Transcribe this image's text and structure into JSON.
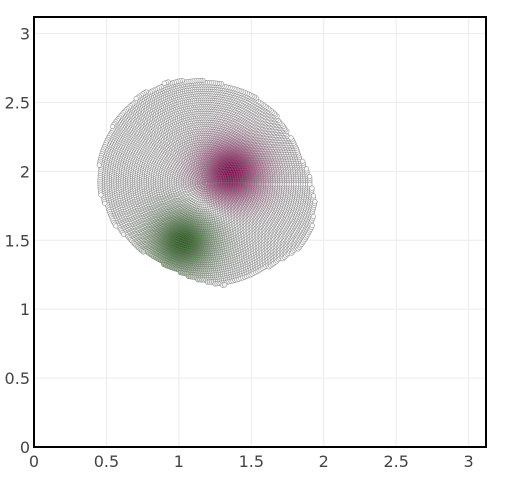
{
  "chart_data": {
    "type": "scatter",
    "title": "",
    "xlabel": "",
    "ylabel": "",
    "xlim": [
      0,
      3.12
    ],
    "ylim": [
      0,
      3.12
    ],
    "grid": true,
    "legend": "none",
    "x_ticks": [
      "0",
      "0.5",
      "1",
      "1.5",
      "2",
      "2.5",
      "3"
    ],
    "y_ticks": [
      "0",
      "0.5",
      "1",
      "1.5",
      "2",
      "2.5",
      "3"
    ],
    "colorscale": [
      "#276419",
      "#f7f7f7",
      "#8e0152"
    ],
    "marker": {
      "style": "open circle",
      "edge_color": "#6e6e6e"
    },
    "region_outline": [
      [
        0.92,
        2.65
      ],
      [
        1.12,
        2.67
      ],
      [
        1.32,
        2.63
      ],
      [
        1.52,
        2.55
      ],
      [
        1.68,
        2.4
      ],
      [
        1.8,
        2.2
      ],
      [
        1.9,
        1.98
      ],
      [
        1.94,
        1.78
      ],
      [
        1.92,
        1.58
      ],
      [
        1.82,
        1.43
      ],
      [
        1.65,
        1.32
      ],
      [
        1.45,
        1.22
      ],
      [
        1.3,
        1.17
      ],
      [
        1.1,
        1.22
      ],
      [
        0.9,
        1.32
      ],
      [
        0.7,
        1.45
      ],
      [
        0.55,
        1.62
      ],
      [
        0.45,
        1.85
      ],
      [
        0.45,
        2.1
      ],
      [
        0.55,
        2.35
      ],
      [
        0.72,
        2.55
      ]
    ],
    "extremes": [
      {
        "x": 1.36,
        "y": 2.0,
        "value": 1
      },
      {
        "x": 1.03,
        "y": 1.48,
        "value": -1
      }
    ]
  }
}
